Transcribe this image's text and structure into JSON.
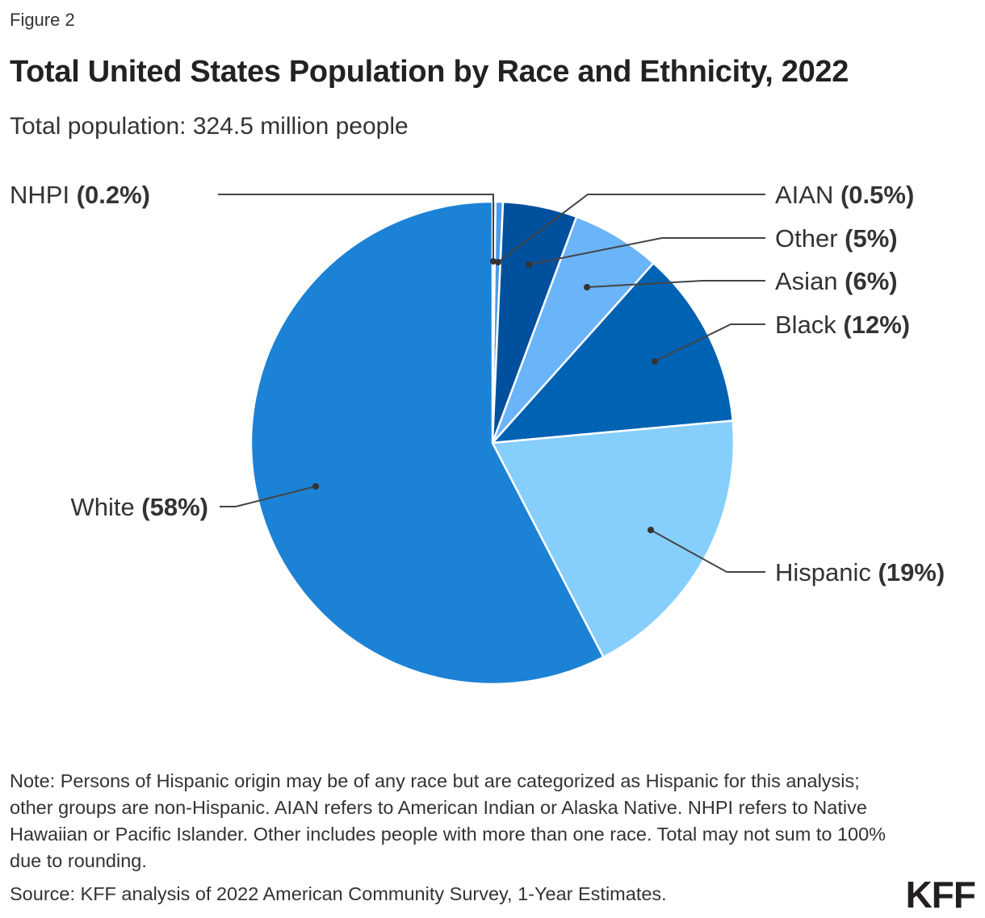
{
  "figure_label": "Figure 2",
  "chart_data": {
    "type": "pie",
    "title": "Total United States Population by Race and Ethnicity, 2022",
    "subtitle": "Total population: 324.5 million people",
    "slices": [
      {
        "label": "NHPI",
        "value": 0.2,
        "display": "(0.2%)",
        "color": "#4d9ae8"
      },
      {
        "label": "AIAN",
        "value": 0.5,
        "display": "(0.5%)",
        "color": "#4d9ae8"
      },
      {
        "label": "Other",
        "value": 5,
        "display": "(5%)",
        "color": "#00509e"
      },
      {
        "label": "Asian",
        "value": 6,
        "display": "(6%)",
        "color": "#6ab4fa"
      },
      {
        "label": "Black",
        "value": 12,
        "display": "(12%)",
        "color": "#0062b3"
      },
      {
        "label": "Hispanic",
        "value": 19,
        "display": "(19%)",
        "color": "#86cefc"
      },
      {
        "label": "White",
        "value": 58,
        "display": "(58%)",
        "color": "#1c82d5"
      }
    ]
  },
  "note": "Note: Persons of Hispanic origin may be of any race but are categorized as Hispanic for this analysis; other groups are non-Hispanic. AIAN refers to American Indian or Alaska Native. NHPI refers to Native Hawaiian or Pacific Islander. Other includes people with more than one race. Total may not sum to 100% due to rounding.",
  "source": "Source: KFF analysis of 2022 American Community Survey, 1-Year Estimates.",
  "logo": "KFF"
}
